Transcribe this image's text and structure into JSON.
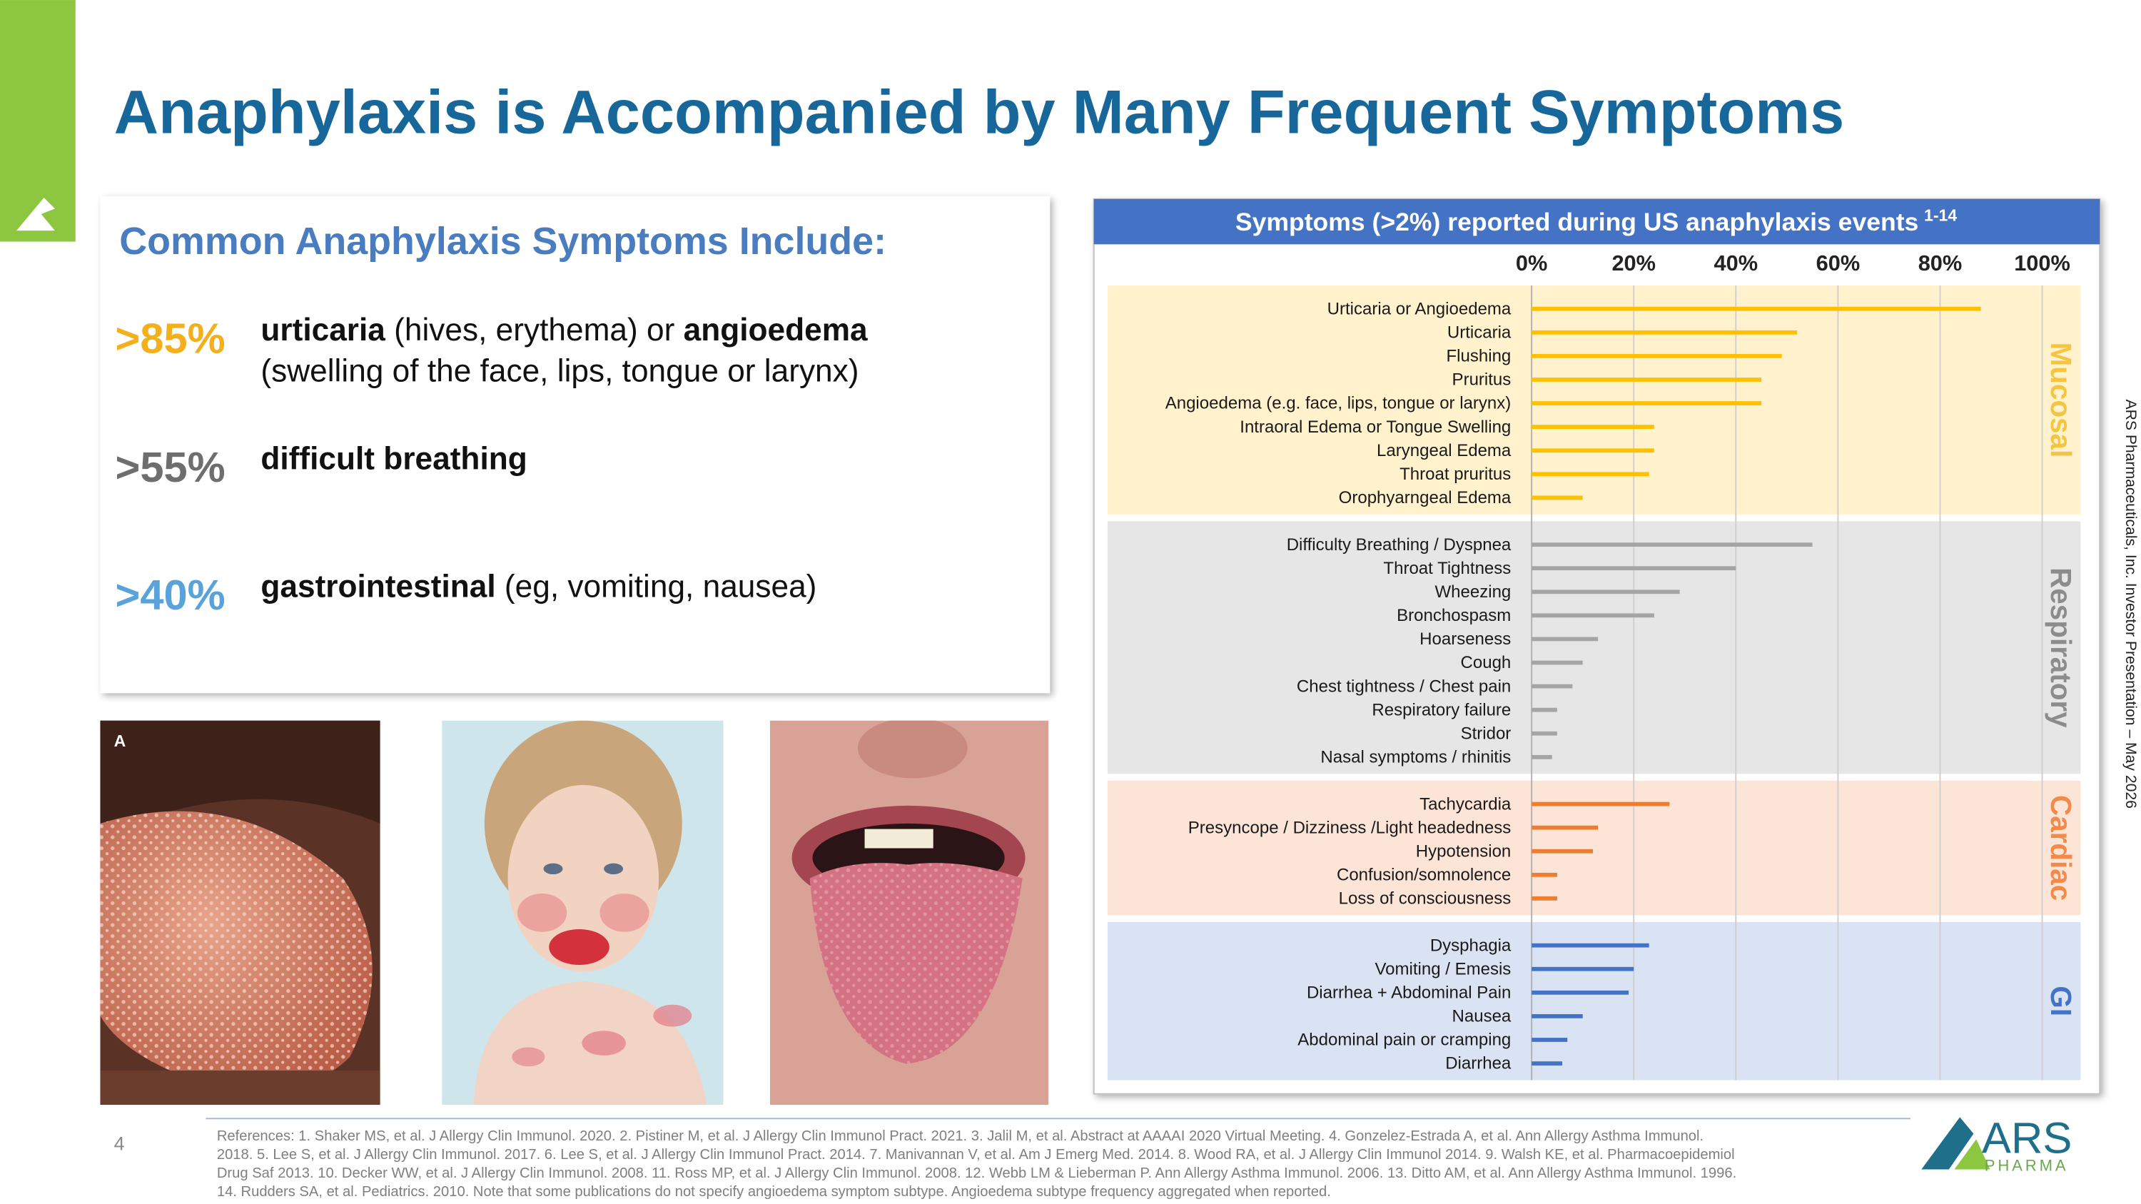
{
  "title": "Anaphylaxis is Accompanied by Many Frequent Symptoms",
  "summary": {
    "heading": "Common Anaphylaxis Symptoms Include:",
    "items": [
      {
        "stat": ">85%",
        "stat_color": "#f3b01c",
        "lines": [
          [
            {
              "text": "urticaria",
              "bold": true
            },
            {
              "text": " (hives, erythema) or ",
              "bold": false
            },
            {
              "text": "angioedema",
              "bold": true
            }
          ],
          [
            {
              "text": "(swelling of the face, lips, tongue or larynx)",
              "bold": false
            }
          ]
        ]
      },
      {
        "stat": ">55%",
        "stat_color": "#6e6e6e",
        "lines": [
          [
            {
              "text": "difficult breathing",
              "bold": true
            }
          ]
        ]
      },
      {
        "stat": ">40%",
        "stat_color": "#5aa2da",
        "lines": [
          [
            {
              "text": "gastrointestinal",
              "bold": true
            },
            {
              "text": " (eg, vomiting, nausea)",
              "bold": false
            }
          ]
        ]
      }
    ]
  },
  "photo_label": "A",
  "side_note": "ARS Pharmaceuticals, Inc. Investor Presentation – May 2026",
  "page_number": "4",
  "references": [
    "References: 1. Shaker MS, et al. J Allergy Clin Immunol. 2020. 2. Pistiner M, et al. J Allergy Clin Immunol Pract. 2021. 3. Jalil M, et al. Abstract at AAAAI 2020 Virtual Meeting. 4. Gonzelez-Estrada A, et al. Ann Allergy Asthma Immunol.",
    "2018. 5. Lee S, et al. J Allergy Clin Immunol. 2017. 6. Lee S, et al. J Allergy Clin Immunol Pract. 2014. 7. Manivannan V, et al. Am J Emerg Med. 2014. 8. Wood RA, et al. J Allergy Clin Immunol 2014. 9. Walsh KE, et al. Pharmacoepidemiol",
    "Drug Saf 2013. 10. Decker WW, et al. J Allergy Clin Immunol. 2008. 11. Ross MP, et al. J Allergy Clin Immunol. 2008. 12. Webb LM & Lieberman P. Ann Allergy Asthma Immunol. 2006. 13. Ditto AM, et al. Ann Allergy Asthma Immunol. 1996.",
    "14. Rudders SA, et al. Pediatrics. 2010. Note that some publications do not specify angioedema symptom subtype. Angioedema subtype frequency aggregated when reported."
  ],
  "logo": {
    "name": "ARS",
    "sub": "PHARMA"
  },
  "chart_data": {
    "type": "bar",
    "orientation": "horizontal",
    "title": "Symptoms (>2%) reported during US anaphylaxis events",
    "title_ref": "1-14",
    "xlim": [
      0,
      100
    ],
    "xticks": [
      {
        "value": 0,
        "label": "0%"
      },
      {
        "value": 20,
        "label": "20%"
      },
      {
        "value": 40,
        "label": "40%"
      },
      {
        "value": 60,
        "label": "60%"
      },
      {
        "value": 80,
        "label": "80%"
      },
      {
        "value": 100,
        "label": "100%"
      }
    ],
    "grid": true,
    "groups": [
      {
        "name": "Mucosal",
        "color": "#ffc000",
        "background": "#fff2cc",
        "label_color": "#f4c543",
        "categories": [
          "Urticaria or Angioedema",
          "Urticaria",
          "Flushing",
          "Pruritus",
          "Angioedema (e.g. face, lips, tongue or larynx)",
          "Intraoral Edema or Tongue Swelling",
          "Laryngeal Edema",
          "Throat pruritus",
          "Orophyarngeal Edema"
        ],
        "values": [
          88,
          52,
          49,
          45,
          45,
          24,
          24,
          23,
          10
        ]
      },
      {
        "name": "Respiratory",
        "color": "#a5a5a5",
        "background": "#e6e6e6",
        "label_color": "#8c8c8c",
        "categories": [
          "Difficulty Breathing / Dyspnea",
          "Throat Tightness",
          "Wheezing",
          "Bronchospasm",
          "Hoarseness",
          "Cough",
          "Chest tightness / Chest pain",
          "Respiratory failure",
          "Stridor",
          "Nasal symptoms / rhinitis"
        ],
        "values": [
          55,
          40,
          29,
          24,
          13,
          10,
          8,
          5,
          5,
          4
        ]
      },
      {
        "name": "Cardiac",
        "color": "#ed7d31",
        "background": "#fce4d6",
        "label_color": "#f28a4b",
        "categories": [
          "Tachycardia",
          "Presyncope / Dizziness /Light headedness",
          "Hypotension",
          "Confusion/somnolence",
          "Loss of consciousness"
        ],
        "values": [
          27,
          13,
          12,
          5,
          5
        ]
      },
      {
        "name": "GI",
        "color": "#4472c4",
        "background": "#dae3f3",
        "label_color": "#4472c4",
        "categories": [
          "Dysphagia",
          "Vomiting / Emesis",
          "Diarrhea + Abdominal Pain",
          "Nausea",
          "Abdominal pain or cramping",
          "Diarrhea"
        ],
        "values": [
          23,
          20,
          19,
          10,
          7,
          6
        ]
      }
    ]
  }
}
